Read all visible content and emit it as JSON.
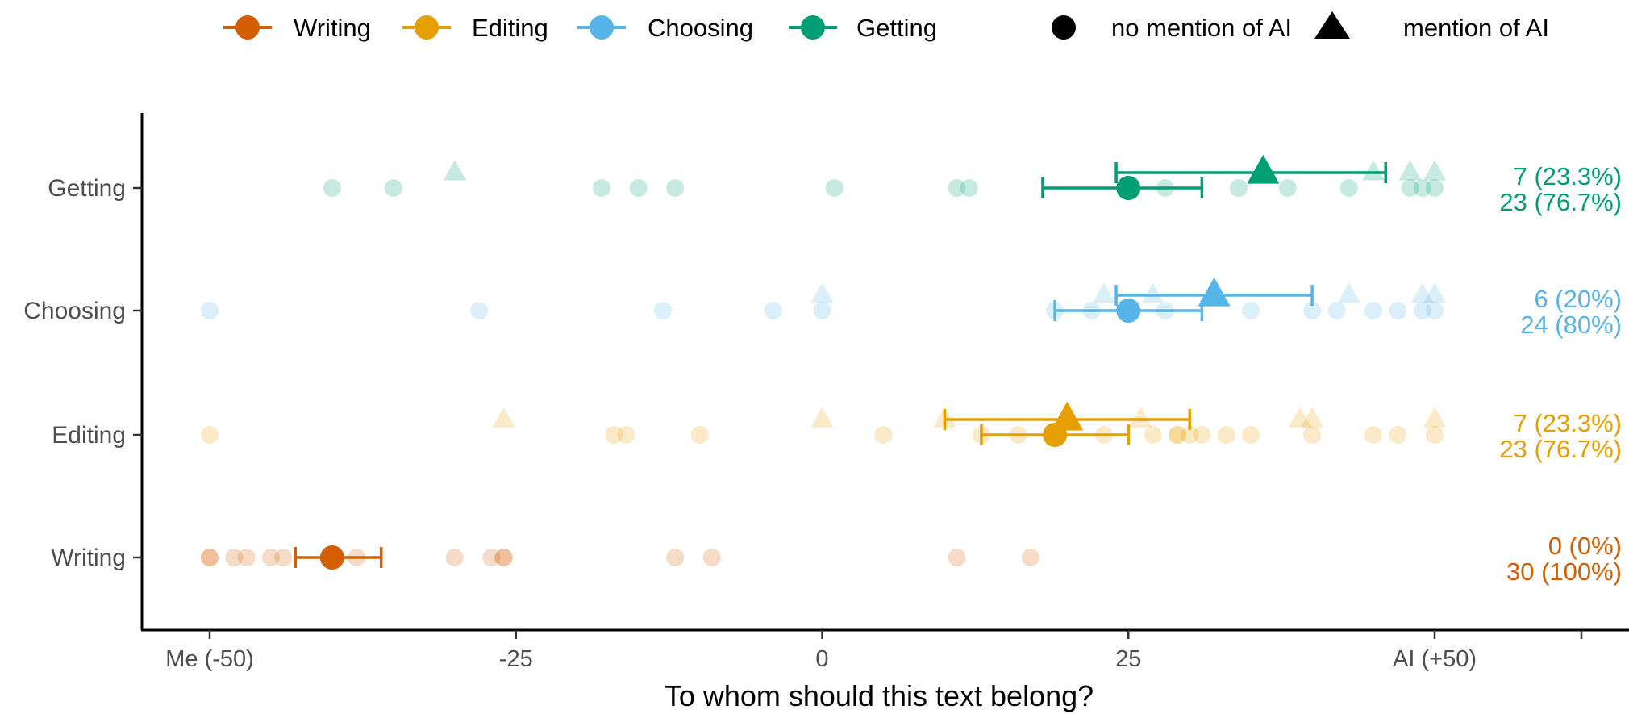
{
  "chart_data": {
    "type": "scatter",
    "title": "",
    "xlabel": "To whom should this text belong?",
    "ylabel": "",
    "xlim": [
      -50,
      50
    ],
    "x_ticks": [
      {
        "value": -50,
        "label": "Me (-50)"
      },
      {
        "value": -25,
        "label": "-25"
      },
      {
        "value": 0,
        "label": "0"
      },
      {
        "value": 25,
        "label": "25"
      },
      {
        "value": 50,
        "label": "AI (+50)"
      }
    ],
    "categories": [
      "Writing",
      "Editing",
      "Choosing",
      "Getting"
    ],
    "grid": false,
    "legend_position": "top",
    "legend": {
      "series": [
        {
          "name": "Writing",
          "color": "#D55E00"
        },
        {
          "name": "Editing",
          "color": "#E69F00"
        },
        {
          "name": "Choosing",
          "color": "#56B4E9"
        },
        {
          "name": "Getting",
          "color": "#009E73"
        }
      ],
      "shapes": [
        {
          "name": "no mention of AI",
          "shape": "circle"
        },
        {
          "name": "mention of AI",
          "shape": "triangle"
        }
      ]
    },
    "series": [
      {
        "name": "Writing",
        "color": "#D55E00",
        "no_mention_ai": {
          "points": [
            -50,
            -50,
            -48,
            -47,
            -45,
            -44,
            -40,
            -38,
            -30,
            -27,
            -26,
            -26,
            -12,
            -9,
            11,
            17
          ],
          "mean": -40,
          "ci": [
            -43,
            -36
          ],
          "count_label": "30 (100%)"
        },
        "mention_ai": {
          "points": [],
          "mean": null,
          "ci": null,
          "count_label": "0 (0%)"
        }
      },
      {
        "name": "Editing",
        "color": "#E69F00",
        "no_mention_ai": {
          "points": [
            -50,
            -17,
            -16,
            -10,
            5,
            13,
            16,
            19,
            23,
            27,
            29,
            29,
            30,
            31,
            33,
            35,
            40,
            45,
            47,
            50
          ],
          "mean": 19,
          "ci": [
            13,
            25
          ],
          "count_label": "23 (76.7%)"
        },
        "mention_ai": {
          "points": [
            -26,
            0,
            10,
            26,
            39,
            40,
            50
          ],
          "mean": 20,
          "ci": [
            10,
            30
          ],
          "count_label": "7 (23.3%)"
        }
      },
      {
        "name": "Choosing",
        "color": "#56B4E9",
        "no_mention_ai": {
          "points": [
            -50,
            -28,
            -13,
            -4,
            0,
            19,
            22,
            28,
            35,
            40,
            42,
            45,
            47,
            49,
            50
          ],
          "mean": 25,
          "ci": [
            19,
            31
          ],
          "count_label": "24 (80%)"
        },
        "mention_ai": {
          "points": [
            0,
            23,
            27,
            43,
            49,
            50
          ],
          "mean": 32,
          "ci": [
            24,
            40
          ],
          "count_label": "6 (20%)"
        }
      },
      {
        "name": "Getting",
        "color": "#009E73",
        "no_mention_ai": {
          "points": [
            -40,
            -35,
            -18,
            -15,
            -12,
            1,
            11,
            12,
            28,
            34,
            38,
            43,
            48,
            49,
            50
          ],
          "mean": 25,
          "ci": [
            18,
            31
          ],
          "count_label": "23 (76.7%)"
        },
        "mention_ai": {
          "points": [
            -30,
            45,
            48,
            50
          ],
          "mean": 36,
          "ci": [
            24,
            46
          ],
          "count_label": "7 (23.3%)"
        }
      }
    ]
  }
}
